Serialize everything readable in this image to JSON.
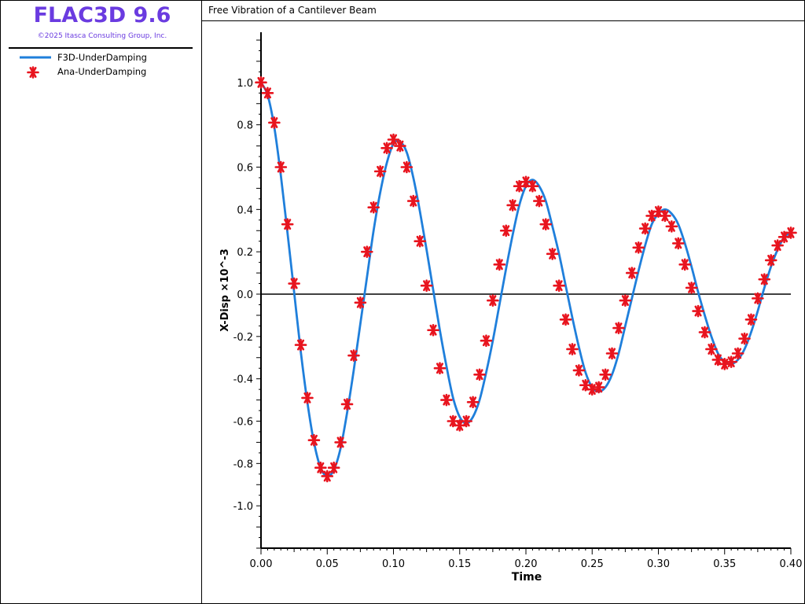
{
  "app": {
    "title": "FLAC3D 9.6",
    "copyright": "©2025 Itasca Consulting Group, Inc."
  },
  "colors": {
    "brand": "#6a3be0",
    "f3d_line": "#1f7fdb",
    "ana_marker": "#e8141e"
  },
  "legend": {
    "items": [
      {
        "label": "F3D-UnderDamping",
        "symbol": "line"
      },
      {
        "label": "Ana-UnderDamping",
        "symbol": "asterisk"
      }
    ]
  },
  "chart_data": {
    "type": "line",
    "title": "Free Vibration of a Cantilever Beam",
    "xlabel": "Time",
    "ylabel": "X-Disp ×10^-3",
    "xlim": [
      0.0,
      0.4
    ],
    "ylim": [
      -1.2,
      1.2
    ],
    "xticks": [
      "0.00",
      "0.05",
      "0.10",
      "0.15",
      "0.20",
      "0.25",
      "0.30",
      "0.35",
      "0.40"
    ],
    "yticks": [
      "-1.0",
      "-0.8",
      "-0.6",
      "-0.4",
      "-0.2",
      "0.0",
      "0.2",
      "0.4",
      "0.6",
      "0.8",
      "1.0"
    ],
    "grid": false,
    "legend_position": "sidebar",
    "series": [
      {
        "name": "F3D-UnderDamping",
        "style": "line",
        "x": [
          0.0,
          0.005,
          0.01,
          0.015,
          0.02,
          0.025,
          0.03,
          0.035,
          0.04,
          0.045,
          0.05,
          0.055,
          0.06,
          0.065,
          0.07,
          0.075,
          0.08,
          0.085,
          0.09,
          0.095,
          0.1,
          0.105,
          0.11,
          0.115,
          0.12,
          0.125,
          0.13,
          0.135,
          0.14,
          0.145,
          0.15,
          0.155,
          0.16,
          0.165,
          0.17,
          0.175,
          0.18,
          0.185,
          0.19,
          0.195,
          0.2,
          0.205,
          0.21,
          0.215,
          0.22,
          0.225,
          0.23,
          0.235,
          0.24,
          0.245,
          0.25,
          0.255,
          0.26,
          0.265,
          0.27,
          0.275,
          0.28,
          0.285,
          0.29,
          0.295,
          0.3,
          0.305,
          0.31,
          0.315,
          0.32,
          0.325,
          0.33,
          0.335,
          0.34,
          0.345,
          0.35,
          0.355,
          0.36,
          0.365,
          0.37,
          0.375,
          0.38,
          0.385,
          0.39,
          0.395,
          0.4
        ],
        "y": [
          1.0,
          0.94,
          0.79,
          0.56,
          0.29,
          0.01,
          -0.27,
          -0.51,
          -0.7,
          -0.82,
          -0.86,
          -0.83,
          -0.73,
          -0.56,
          -0.36,
          -0.14,
          0.08,
          0.3,
          0.48,
          0.62,
          0.71,
          0.72,
          0.67,
          0.55,
          0.39,
          0.21,
          0.02,
          -0.17,
          -0.34,
          -0.49,
          -0.58,
          -0.61,
          -0.58,
          -0.5,
          -0.37,
          -0.22,
          -0.05,
          0.12,
          0.28,
          0.42,
          0.51,
          0.54,
          0.51,
          0.44,
          0.32,
          0.19,
          0.04,
          -0.11,
          -0.25,
          -0.37,
          -0.44,
          -0.46,
          -0.44,
          -0.38,
          -0.28,
          -0.15,
          -0.02,
          0.11,
          0.23,
          0.33,
          0.38,
          0.4,
          0.38,
          0.33,
          0.24,
          0.13,
          0.01,
          -0.1,
          -0.2,
          -0.28,
          -0.32,
          -0.33,
          -0.31,
          -0.26,
          -0.18,
          -0.08,
          0.03,
          0.13,
          0.21,
          0.27,
          0.29
        ]
      },
      {
        "name": "Ana-UnderDamping",
        "style": "asterisk",
        "x": [
          0.0,
          0.005,
          0.01,
          0.015,
          0.02,
          0.025,
          0.03,
          0.035,
          0.04,
          0.045,
          0.05,
          0.055,
          0.06,
          0.065,
          0.07,
          0.075,
          0.08,
          0.085,
          0.09,
          0.095,
          0.1,
          0.105,
          0.11,
          0.115,
          0.12,
          0.125,
          0.13,
          0.135,
          0.14,
          0.145,
          0.15,
          0.155,
          0.16,
          0.165,
          0.17,
          0.175,
          0.18,
          0.185,
          0.19,
          0.195,
          0.2,
          0.205,
          0.21,
          0.215,
          0.22,
          0.225,
          0.23,
          0.235,
          0.24,
          0.245,
          0.25,
          0.255,
          0.26,
          0.265,
          0.27,
          0.275,
          0.28,
          0.285,
          0.29,
          0.295,
          0.3,
          0.305,
          0.31,
          0.315,
          0.32,
          0.325,
          0.33,
          0.335,
          0.34,
          0.345,
          0.35,
          0.355,
          0.36,
          0.365,
          0.37,
          0.375,
          0.38,
          0.385,
          0.39,
          0.395,
          0.4
        ],
        "y": [
          1.0,
          0.95,
          0.81,
          0.6,
          0.33,
          0.05,
          -0.24,
          -0.49,
          -0.69,
          -0.82,
          -0.86,
          -0.82,
          -0.7,
          -0.52,
          -0.29,
          -0.04,
          0.2,
          0.41,
          0.58,
          0.69,
          0.73,
          0.7,
          0.6,
          0.44,
          0.25,
          0.04,
          -0.17,
          -0.35,
          -0.5,
          -0.6,
          -0.62,
          -0.6,
          -0.51,
          -0.38,
          -0.22,
          -0.03,
          0.14,
          0.3,
          0.42,
          0.51,
          0.53,
          0.51,
          0.44,
          0.33,
          0.19,
          0.04,
          -0.12,
          -0.26,
          -0.36,
          -0.43,
          -0.45,
          -0.44,
          -0.38,
          -0.28,
          -0.16,
          -0.03,
          0.1,
          0.22,
          0.31,
          0.37,
          0.39,
          0.37,
          0.32,
          0.24,
          0.14,
          0.03,
          -0.08,
          -0.18,
          -0.26,
          -0.31,
          -0.33,
          -0.32,
          -0.28,
          -0.21,
          -0.12,
          -0.02,
          0.07,
          0.16,
          0.23,
          0.27,
          0.29
        ]
      }
    ]
  }
}
